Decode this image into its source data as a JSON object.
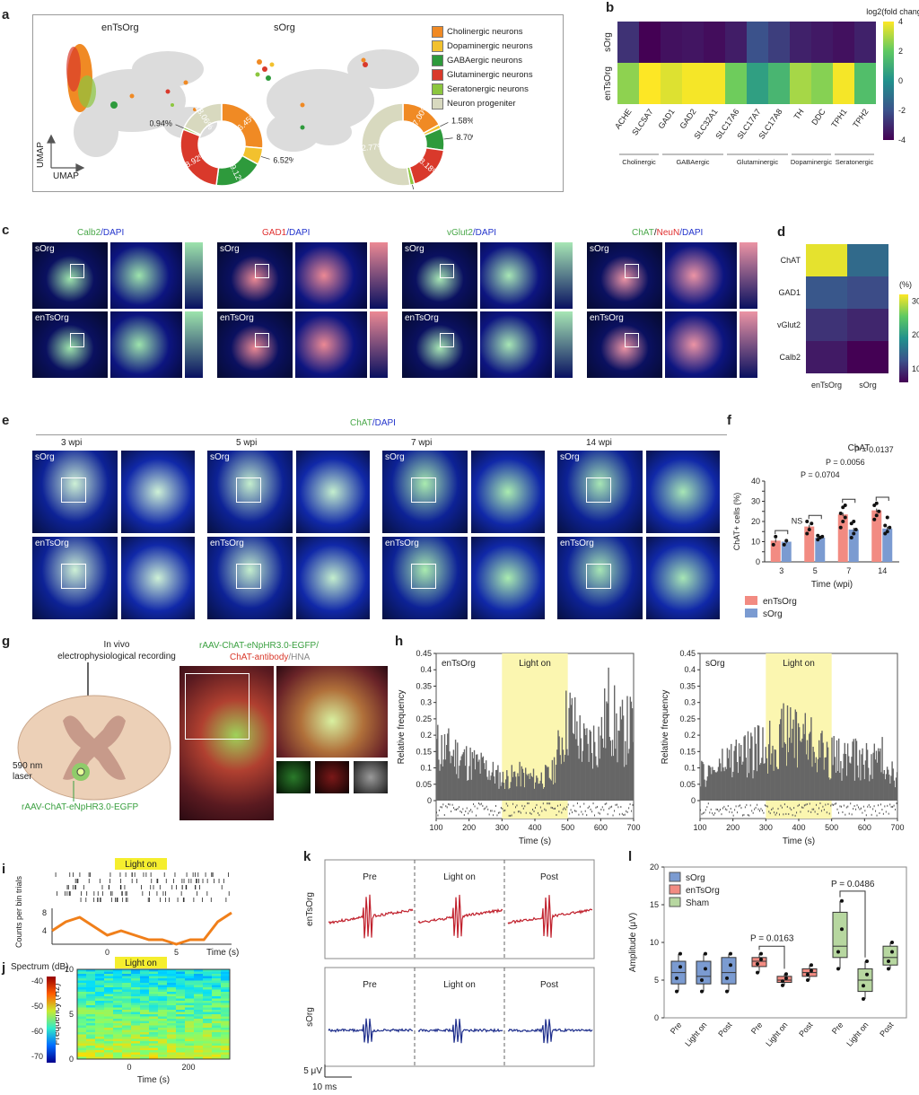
{
  "panels": {
    "a": "a",
    "b": "b",
    "c": "c",
    "d": "d",
    "e": "e",
    "f": "f",
    "g": "g",
    "h": "h",
    "i": "i",
    "j": "j",
    "k": "k",
    "l": "l"
  },
  "panel_a": {
    "left_title": "enTsOrg",
    "right_title": "sOrg",
    "axis_x": "UMAP",
    "axis_y": "UMAP",
    "legend": [
      {
        "label": "Cholinergic neurons",
        "color": "#f08a24"
      },
      {
        "label": "Dopaminergic neurons",
        "color": "#f2c12e"
      },
      {
        "label": "GABAergic neurons",
        "color": "#2e9a3c"
      },
      {
        "label": "Glutaminergic neurons",
        "color": "#d9392b"
      },
      {
        "label": "Seratonergic neurons",
        "color": "#8cc63f"
      },
      {
        "label": "Neuron progeniter",
        "color": "#d8d9bf"
      }
    ],
    "donut_left": [
      {
        "value": 26.45,
        "label": "26.45%",
        "color": "#f08a24"
      },
      {
        "value": 6.52,
        "label": "6.52%",
        "color": "#f2c12e"
      },
      {
        "value": 19.12,
        "label": "19.12%",
        "color": "#2e9a3c"
      },
      {
        "value": 28.92,
        "label": "28.92%",
        "color": "#d9392b"
      },
      {
        "value": 0.94,
        "label": "0.94%",
        "color": "#8cc63f"
      },
      {
        "value": 18.06,
        "label": "18.06%",
        "color": "#d8d9bf"
      }
    ],
    "donut_right": [
      {
        "value": 17.0,
        "label": "17.00%",
        "color": "#f08a24"
      },
      {
        "value": 1.58,
        "label": "1.58%",
        "color": "#f2c12e"
      },
      {
        "value": 8.7,
        "label": "8.70%",
        "color": "#2e9a3c"
      },
      {
        "value": 18.18,
        "label": "18.18%",
        "color": "#d9392b"
      },
      {
        "value": 1.78,
        "label": "1.78%",
        "color": "#8cc63f"
      },
      {
        "value": 52.77,
        "label": "52.77%",
        "color": "#d8d9bf"
      }
    ]
  },
  "panel_c": {
    "headers": [
      {
        "parts": [
          {
            "text": "Calb2",
            "color": "#4aa84a"
          },
          {
            "text": "/DAPI",
            "color": "#2233cc"
          }
        ]
      },
      {
        "parts": [
          {
            "text": "GAD1",
            "color": "#e03030"
          },
          {
            "text": "/DAPI",
            "color": "#2233cc"
          }
        ]
      },
      {
        "parts": [
          {
            "text": "vGlut2",
            "color": "#4aa84a"
          },
          {
            "text": "/DAPI",
            "color": "#2233cc"
          }
        ]
      },
      {
        "parts": [
          {
            "text": "ChAT",
            "color": "#4aa84a"
          },
          {
            "text": "/",
            "color": "#222"
          },
          {
            "text": "NeuN",
            "color": "#e03030"
          },
          {
            "text": "/DAPI",
            "color": "#2233cc"
          }
        ]
      }
    ],
    "row_labels": [
      "sOrg",
      "enTsOrg"
    ]
  },
  "panel_e": {
    "title_green": "ChAT",
    "title_blue": "/DAPI",
    "timepoints": [
      "3 wpi",
      "5 wpi",
      "7 wpi",
      "14 wpi"
    ],
    "row_labels": [
      "sOrg",
      "enTsOrg"
    ]
  },
  "panel_g": {
    "title": "In vivo\nelectrophysiological recording",
    "laser": "590 nm\nlaser",
    "virus": "rAAV-ChAT-eNpHR3.0-EGFP",
    "caption_line1": "rAAV-ChAT-eNpHR3.0-EGFP/",
    "caption_red": "ChAT-antibody",
    "caption_grey": "/HNA"
  },
  "chart_data": [
    {
      "id": "b",
      "type": "heatmap",
      "title": "log2(fold change)",
      "rows": [
        "sOrg",
        "enTsOrg"
      ],
      "columns": [
        "ACHE",
        "SLC5A7",
        "GAD1",
        "GAD2",
        "SLC32A1",
        "SLC17A6",
        "SLC17A7",
        "SLC17A8",
        "TH",
        "DDC",
        "TPH1",
        "TPH2"
      ],
      "groups": [
        {
          "label": "Cholinergic",
          "span": 2
        },
        {
          "label": "GABAergic",
          "span": 3
        },
        {
          "label": "Glutaminergic",
          "span": 3
        },
        {
          "label": "Dopaminergic",
          "span": 2
        },
        {
          "label": "Seratonergic",
          "span": 2
        }
      ],
      "values": [
        [
          -2.8,
          -4.0,
          -3.6,
          -3.5,
          -3.7,
          -3.3,
          -2.0,
          -2.5,
          -3.2,
          -3.4,
          -3.6,
          -3.2
        ],
        [
          2.6,
          4.0,
          3.6,
          3.9,
          3.9,
          2.2,
          0.5,
          1.3,
          2.9,
          2.5,
          3.9,
          1.6
        ]
      ],
      "colorbar_ticks": [
        4,
        2,
        0,
        -2,
        -4
      ],
      "range": [
        -4,
        4
      ]
    },
    {
      "id": "d",
      "type": "heatmap",
      "title": "(%)",
      "rows": [
        "ChAT",
        "GAD1",
        "vGlut2",
        "Calb2"
      ],
      "columns": [
        "enTsOrg",
        "sOrg"
      ],
      "values": [
        [
          31,
          15
        ],
        [
          13,
          12
        ],
        [
          10,
          9
        ],
        [
          8,
          6
        ]
      ],
      "colorbar_ticks": [
        30,
        20,
        10
      ],
      "range": [
        6,
        32
      ]
    },
    {
      "id": "f",
      "type": "bar",
      "title": "ChAT",
      "xlabel": "Time (wpi)",
      "ylabel": "ChAT+ cells (%)",
      "categories": [
        "3",
        "5",
        "7",
        "14"
      ],
      "ylim": [
        0,
        40
      ],
      "yticks": [
        0,
        5,
        10,
        15,
        20,
        25,
        30,
        35,
        40
      ],
      "series": [
        {
          "name": "enTsOrg",
          "color": "#f28b82",
          "values": [
            10.5,
            17.5,
            23.5,
            25.5
          ],
          "points": [
            [
              8.5,
              12.5
            ],
            [
              14,
              16,
              19,
              20
            ],
            [
              17,
              20,
              22,
              24,
              27,
              28
            ],
            [
              21,
              23,
              25,
              28,
              29
            ]
          ]
        },
        {
          "name": "sOrg",
          "color": "#7b9bd1",
          "values": [
            10,
            12,
            16,
            16.5
          ],
          "points": [
            [
              8.5,
              10.5
            ],
            [
              11,
              12,
              12.5,
              13
            ],
            [
              12,
              14,
              16,
              19,
              20
            ],
            [
              14,
              15,
              17,
              18,
              22
            ]
          ]
        }
      ],
      "annotations": [
        {
          "text": "NS",
          "between": "3"
        },
        {
          "text": "P = 0.0704",
          "between": "5"
        },
        {
          "text": "P = 0.0056",
          "between": "7"
        },
        {
          "text": "P = 0.0137",
          "between": "14"
        }
      ]
    },
    {
      "id": "h-left",
      "type": "bar",
      "label": "enTsOrg",
      "shade_label": "Light on",
      "xlabel": "Time (s)",
      "ylabel": "Relative frequency",
      "xlim": [
        100,
        700
      ],
      "ylim": [
        0,
        0.45
      ],
      "xticks": [
        100,
        200,
        300,
        400,
        500,
        600,
        700
      ],
      "yticks": [
        0,
        0.05,
        0.1,
        0.15,
        0.2,
        0.25,
        0.3,
        0.35,
        0.4,
        0.45
      ],
      "shade": [
        300,
        500
      ],
      "envelope": [
        [
          100,
          0.25
        ],
        [
          150,
          0.22
        ],
        [
          200,
          0.18
        ],
        [
          250,
          0.15
        ],
        [
          300,
          0.1
        ],
        [
          350,
          0.12
        ],
        [
          400,
          0.1
        ],
        [
          450,
          0.12
        ],
        [
          500,
          0.4
        ],
        [
          550,
          0.25
        ],
        [
          600,
          0.3
        ],
        [
          625,
          0.45
        ],
        [
          650,
          0.3
        ],
        [
          700,
          0.35
        ]
      ]
    },
    {
      "id": "h-right",
      "type": "bar",
      "label": "sOrg",
      "shade_label": "Light on",
      "xlabel": "Time (s)",
      "ylabel": "Relative frequency",
      "xlim": [
        100,
        700
      ],
      "ylim": [
        0,
        0.45
      ],
      "xticks": [
        100,
        200,
        300,
        400,
        500,
        600,
        700
      ],
      "yticks": [
        0,
        0.05,
        0.1,
        0.15,
        0.2,
        0.25,
        0.3,
        0.35,
        0.4,
        0.45
      ],
      "shade": [
        300,
        500
      ],
      "envelope": [
        [
          100,
          0.12
        ],
        [
          150,
          0.15
        ],
        [
          200,
          0.2
        ],
        [
          250,
          0.22
        ],
        [
          300,
          0.25
        ],
        [
          350,
          0.3
        ],
        [
          400,
          0.33
        ],
        [
          450,
          0.25
        ],
        [
          500,
          0.2
        ],
        [
          550,
          0.2
        ],
        [
          600,
          0.18
        ],
        [
          650,
          0.2
        ],
        [
          700,
          0.12
        ]
      ]
    },
    {
      "id": "i",
      "type": "line",
      "shade_label": "Light on",
      "xlabel": "Time (s)",
      "ylabel": "Counts per bin trials",
      "xticks": [
        0,
        5
      ],
      "yticks": [
        4,
        8
      ],
      "x": [
        -4,
        -3,
        -2,
        -1,
        0,
        1,
        2,
        3,
        4,
        5,
        6,
        7,
        8,
        9
      ],
      "y": [
        4,
        6,
        7,
        5,
        3,
        4,
        3,
        2,
        2,
        1,
        2,
        2,
        6,
        8
      ]
    },
    {
      "id": "j",
      "type": "heatmap",
      "shade_label": "Light on",
      "xlabel": "Time (s)",
      "ylabel": "Frequency (Hz)",
      "colorbar_title": "Spectrum (dB)",
      "colorbar_ticks": [
        -40,
        -50,
        -60,
        -70
      ],
      "xticks": [
        0,
        200
      ],
      "yticks": [
        0,
        5,
        10
      ]
    },
    {
      "id": "k",
      "type": "line",
      "rows": [
        "enTsOrg",
        "sOrg"
      ],
      "segments": [
        "Pre",
        "Light on",
        "Post"
      ],
      "scale_y": "5 μV",
      "scale_x": "10 ms"
    },
    {
      "id": "l",
      "type": "box",
      "ylabel": "Amplitude (μV)",
      "ylim": [
        0,
        20
      ],
      "yticks": [
        0,
        5,
        10,
        15,
        20
      ],
      "legend": [
        {
          "name": "sOrg",
          "color": "#7b9bd1"
        },
        {
          "name": "enTsOrg",
          "color": "#f28b82"
        },
        {
          "name": "Sham",
          "color": "#b7d7a0"
        }
      ],
      "groups": [
        {
          "name": "sOrg",
          "boxes": [
            {
              "label": "Pre",
              "q1": 4.5,
              "med": 6,
              "q3": 7.5,
              "min": 3.5,
              "max": 8.5
            },
            {
              "label": "Light on",
              "q1": 4.5,
              "med": 5.5,
              "q3": 7.5,
              "min": 3.5,
              "max": 8.5
            },
            {
              "label": "Post",
              "q1": 4.5,
              "med": 6,
              "q3": 8,
              "min": 3.5,
              "max": 8.5
            }
          ]
        },
        {
          "name": "enTsOrg",
          "boxes": [
            {
              "label": "Pre",
              "q1": 6.8,
              "med": 7.5,
              "q3": 8,
              "min": 6,
              "max": 8.5
            },
            {
              "label": "Light on",
              "q1": 4.7,
              "med": 5,
              "q3": 5.5,
              "min": 4.3,
              "max": 5.8
            },
            {
              "label": "Post",
              "q1": 5.5,
              "med": 6,
              "q3": 6.5,
              "min": 5,
              "max": 7
            }
          ]
        },
        {
          "name": "Sham",
          "boxes": [
            {
              "label": "Pre",
              "q1": 8,
              "med": 9.5,
              "q3": 14,
              "min": 6.5,
              "max": 15.5
            },
            {
              "label": "Light on",
              "q1": 3.5,
              "med": 5,
              "q3": 6.5,
              "min": 2.5,
              "max": 7.5
            },
            {
              "label": "Post",
              "q1": 7,
              "med": 8,
              "q3": 9.5,
              "min": 6.5,
              "max": 10
            }
          ]
        }
      ],
      "annotations": [
        {
          "text": "P = 0.0163"
        },
        {
          "text": "P = 0.0486"
        }
      ]
    }
  ]
}
